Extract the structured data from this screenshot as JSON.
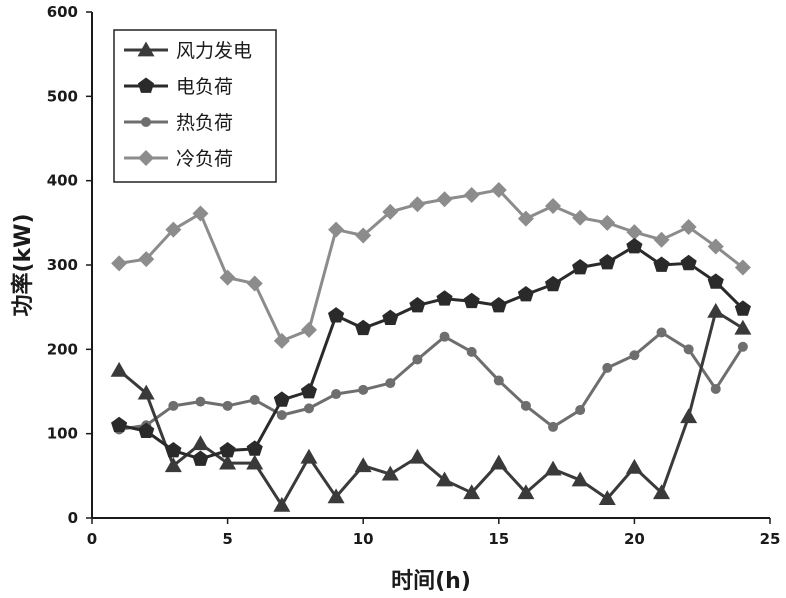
{
  "chart_data": {
    "type": "line",
    "title": "",
    "xlabel": "时间(h)",
    "ylabel": "功率(kW)",
    "xlim": [
      0,
      25
    ],
    "ylim": [
      0,
      600
    ],
    "xticks": [
      0,
      5,
      10,
      15,
      20,
      25
    ],
    "yticks": [
      0,
      100,
      200,
      300,
      400,
      500,
      600
    ],
    "grid": false,
    "legend_position": "top-left",
    "x": [
      1,
      2,
      3,
      4,
      5,
      6,
      7,
      8,
      9,
      10,
      11,
      12,
      13,
      14,
      15,
      16,
      17,
      18,
      19,
      20,
      21,
      22,
      23,
      24
    ],
    "series": [
      {
        "name": "风力发电",
        "marker": "triangle",
        "color": "#3a3a3a",
        "values": [
          175,
          148,
          62,
          88,
          65,
          65,
          15,
          72,
          25,
          62,
          52,
          72,
          45,
          30,
          65,
          30,
          58,
          45,
          23,
          60,
          30,
          120,
          245,
          225
        ]
      },
      {
        "name": "电负荷",
        "marker": "pentagon",
        "color": "#2a2a2a",
        "values": [
          110,
          103,
          80,
          70,
          80,
          82,
          140,
          150,
          240,
          225,
          237,
          252,
          260,
          257,
          252,
          265,
          277,
          297,
          303,
          322,
          300,
          302,
          280,
          248
        ]
      },
      {
        "name": "热负荷",
        "marker": "circle",
        "color": "#6e6e6e",
        "values": [
          105,
          110,
          133,
          138,
          133,
          140,
          122,
          130,
          147,
          152,
          160,
          188,
          215,
          197,
          163,
          133,
          108,
          128,
          178,
          193,
          220,
          200,
          153,
          203
        ]
      },
      {
        "name": "冷负荷",
        "marker": "diamond",
        "color": "#8c8c8c",
        "values": [
          302,
          307,
          342,
          361,
          285,
          278,
          210,
          223,
          342,
          335,
          363,
          372,
          378,
          383,
          389,
          355,
          370,
          356,
          350,
          339,
          330,
          345,
          322,
          297
        ]
      }
    ]
  }
}
